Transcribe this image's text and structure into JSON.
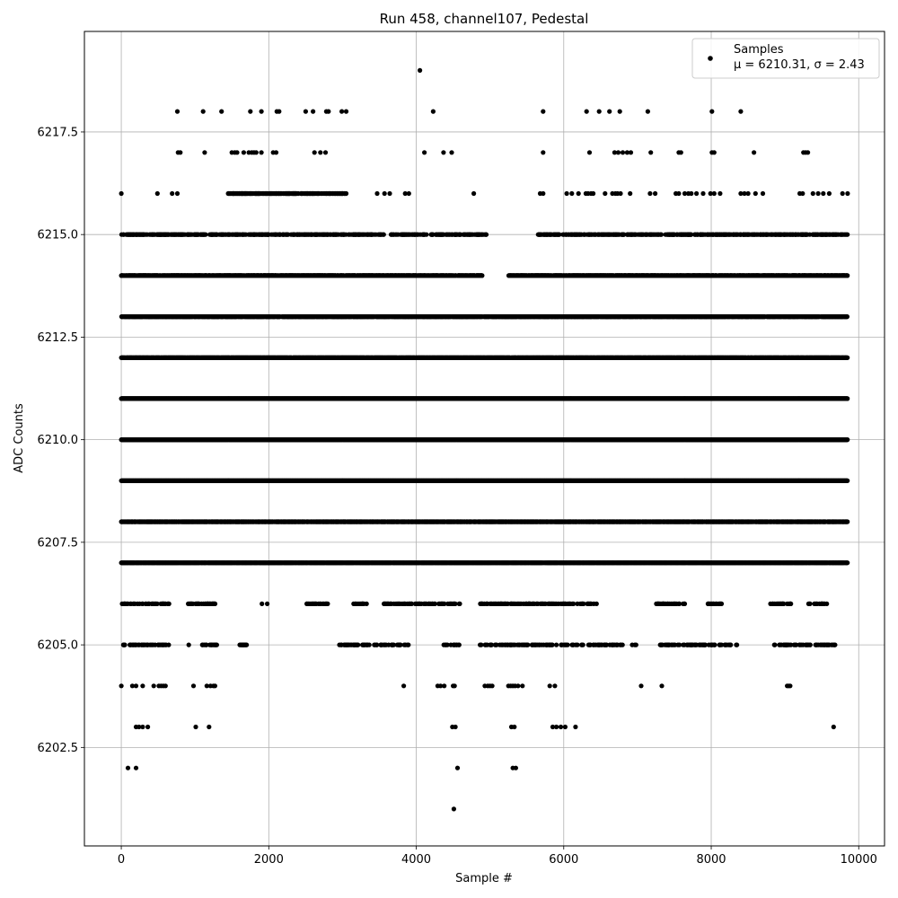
{
  "chart_data": {
    "type": "scatter",
    "title": "Run 458, channel107, Pedestal",
    "xlabel": "Sample #",
    "ylabel": "ADC Counts",
    "xlim": [
      -500,
      10350
    ],
    "ylim": [
      6200.1,
      6219.95
    ],
    "xticks": [
      0,
      2000,
      4000,
      6000,
      8000,
      10000
    ],
    "xtick_labels": [
      "0",
      "2000",
      "4000",
      "6000",
      "8000",
      "10000"
    ],
    "yticks": [
      6202.5,
      6205.0,
      6207.5,
      6210.0,
      6212.5,
      6215.0,
      6217.5
    ],
    "ytick_labels": [
      "6202.5",
      "6205.0",
      "6207.5",
      "6210.0",
      "6212.5",
      "6215.0",
      "6217.5"
    ],
    "grid": true,
    "legend": {
      "position": "top-right",
      "label": "Samples",
      "stat_label": "μ = 6210.31, σ = 2.43"
    },
    "series": [
      {
        "name": "Samples",
        "color": "#000000",
        "sample_count": 9856,
        "x_range": [
          0,
          9850
        ],
        "levels": [
          {
            "y": 6219,
            "x": [
              4050
            ]
          },
          {
            "y": 6218,
            "x": [
              760,
              1110,
              1360,
              1750,
              1900,
              2110,
              2140,
              2500,
              2600,
              2780,
              2810,
              2990,
              3050,
              4230,
              5720,
              6310,
              6480,
              6620,
              6760,
              7140,
              8010,
              8400
            ]
          },
          {
            "y": 6217,
            "x": [
              770,
              800,
              1130,
              1500,
              1540,
              1570,
              1660,
              1730,
              1770,
              1800,
              1830,
              1900,
              2060,
              2100,
              2620,
              2700,
              2770,
              4110,
              4370,
              4480,
              5720,
              6350,
              6690,
              6740,
              6800,
              6860,
              6910,
              7180,
              7560,
              7590,
              8010,
              8040,
              8580,
              9250,
              9280,
              9310
            ]
          },
          {
            "y": 6216,
            "range": [
              1450,
              3050
            ],
            "density": 0.55,
            "extra_x": [
              0,
              490,
              690,
              760,
              3470,
              3570,
              3640,
              3850,
              3900,
              4780,
              5680,
              5720,
              6040,
              6110,
              6200,
              6300,
              6330,
              6370,
              6400,
              6560,
              6660,
              6700,
              6730,
              6770,
              6900,
              7170,
              7240,
              7520,
              7560,
              7640,
              7690,
              7730,
              7800,
              7890,
              7990,
              8040,
              8120,
              8400,
              8450,
              8500,
              8600,
              8700,
              9200,
              9240,
              9380,
              9450,
              9520,
              9600,
              9780,
              9850
            ]
          },
          {
            "y": 6215,
            "range": [
              0,
              9850
            ],
            "density": 0.38,
            "gaps": [
              [
                4950,
                5650
              ]
            ]
          },
          {
            "y": 6214,
            "range": [
              0,
              9850
            ],
            "density": 0.7,
            "gaps": [
              [
                4900,
                5250
              ]
            ]
          },
          {
            "y": 6213,
            "range": [
              0,
              9850
            ],
            "density": 0.72
          },
          {
            "y": 6212,
            "range": [
              0,
              9850
            ],
            "density": 0.92
          },
          {
            "y": 6211,
            "range": [
              0,
              9850
            ],
            "density": 1.0
          },
          {
            "y": 6210,
            "range": [
              0,
              9850
            ],
            "density": 1.0
          },
          {
            "y": 6209,
            "range": [
              0,
              9850
            ],
            "density": 1.0
          },
          {
            "y": 6208,
            "range": [
              0,
              9850
            ],
            "density": 0.82
          },
          {
            "y": 6207,
            "range": [
              0,
              9850
            ],
            "density": 0.9
          },
          {
            "y": 6206,
            "range": [
              0,
              9650
            ],
            "density": 0.25,
            "gaps": [
              [
                650,
                900
              ],
              [
                1300,
                1900
              ],
              [
                2000,
                2500
              ],
              [
                2800,
                3150
              ],
              [
                3350,
                3550
              ],
              [
                4600,
                4850
              ],
              [
                6450,
                7250
              ],
              [
                7650,
                7950
              ],
              [
                8150,
                8800
              ],
              [
                9100,
                9300
              ]
            ]
          },
          {
            "y": 6205,
            "range": [
              0,
              9700
            ],
            "density": 0.22,
            "gaps": [
              [
                650,
                900
              ],
              [
                1300,
                1600
              ],
              [
                1700,
                2950
              ],
              [
                3900,
                4350
              ],
              [
                4600,
                4850
              ],
              [
                6800,
                6900
              ],
              [
                7050,
                7300
              ],
              [
                8350,
                8800
              ]
            ]
          },
          {
            "y": 6204,
            "x": [
              0,
              150,
              200,
              290,
              440,
              510,
              540,
              570,
              600,
              980,
              1160,
              1210,
              1250,
              1270,
              3830,
              4290,
              4330,
              4380,
              4500,
              4520,
              4930,
              4970,
              5000,
              5030,
              5250,
              5280,
              5310,
              5340,
              5380,
              5440,
              5810,
              5880,
              7050,
              7330,
              9030,
              9050,
              9070
            ]
          },
          {
            "y": 6203,
            "x": [
              200,
              240,
              290,
              360,
              1010,
              1190,
              4490,
              4530,
              5290,
              5330,
              5850,
              5900,
              5960,
              6020,
              6160,
              9660
            ]
          },
          {
            "y": 6202,
            "x": [
              90,
              200,
              4560,
              5310,
              5350
            ]
          },
          {
            "y": 6201,
            "x": [
              4510
            ]
          }
        ]
      }
    ]
  }
}
